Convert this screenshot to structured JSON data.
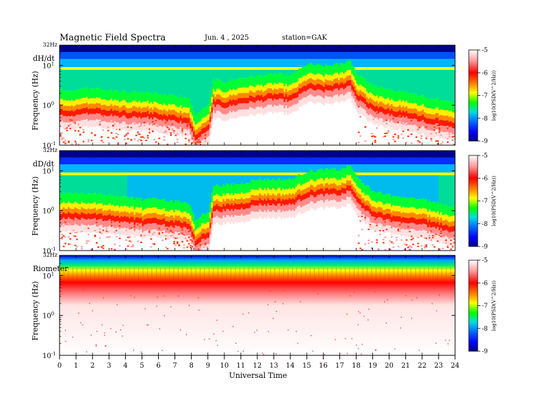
{
  "header": {
    "title": "Magnetic  Field  Spectra",
    "date": "Jun. 4  , 2025",
    "station": "station=GAK"
  },
  "colors": {
    "scale": [
      "#ffffff",
      "#ff9a9a",
      "#ff0000",
      "#ff8c00",
      "#ffff00",
      "#00ff00",
      "#00dddd",
      "#0070ff",
      "#0000ff",
      "#000080"
    ]
  },
  "chart_data": [
    {
      "type": "heatmap",
      "panel_label": "dH/dt",
      "ylabel": "Frequency  (Hz)",
      "xlabel": "",
      "y_scale": "log",
      "y_top_label": "32Hz",
      "y_ticks": [
        {
          "value": 10,
          "base": "10",
          "exp": "1"
        },
        {
          "value": 1,
          "base": "10",
          "exp": "0"
        },
        {
          "value": 0.1,
          "base": "10",
          "exp": "-1"
        }
      ],
      "ylim": [
        0.1,
        32
      ],
      "xlim": [
        0,
        24
      ],
      "x_ticks": [
        "0",
        "1",
        "2",
        "3",
        "4",
        "5",
        "6",
        "7",
        "8",
        "9",
        "10",
        "11",
        "12",
        "13",
        "14",
        "15",
        "16",
        "17",
        "18",
        "19",
        "20",
        "21",
        "22",
        "23",
        "24"
      ],
      "colorbar": {
        "label": "log10(PSD(V^2/Hz))",
        "ticks": [
          "-5",
          "-6",
          "-7",
          "-8",
          "-9"
        ],
        "range": [
          -9,
          -5
        ]
      },
      "ridge_log10_freq": [
        [
          0,
          -0.2
        ],
        [
          1,
          -0.2
        ],
        [
          2,
          -0.15
        ],
        [
          3,
          -0.2
        ],
        [
          4,
          -0.25
        ],
        [
          5,
          -0.25
        ],
        [
          6,
          -0.3
        ],
        [
          7,
          -0.35
        ],
        [
          7.8,
          -0.4
        ],
        [
          8.2,
          -0.8
        ],
        [
          9,
          -0.6
        ],
        [
          9.3,
          0.05
        ],
        [
          10,
          0.0
        ],
        [
          11,
          0.1
        ],
        [
          12,
          0.15
        ],
        [
          13,
          0.2
        ],
        [
          14,
          0.15
        ],
        [
          15,
          0.45
        ],
        [
          16,
          0.4
        ],
        [
          17,
          0.45
        ],
        [
          17.6,
          0.55
        ],
        [
          18,
          0.2
        ],
        [
          19,
          -0.1
        ],
        [
          20,
          -0.2
        ],
        [
          21,
          -0.25
        ],
        [
          22,
          -0.35
        ],
        [
          23,
          -0.45
        ],
        [
          24,
          -0.55
        ]
      ]
    },
    {
      "type": "heatmap",
      "panel_label": "dD/dt",
      "ylabel": "Frequency  (Hz)",
      "xlabel": "",
      "y_scale": "log",
      "y_top_label": "32Hz",
      "y_ticks": [
        {
          "value": 10,
          "base": "10",
          "exp": "1"
        },
        {
          "value": 1,
          "base": "10",
          "exp": "0"
        },
        {
          "value": 0.1,
          "base": "10",
          "exp": "-1"
        }
      ],
      "ylim": [
        0.1,
        32
      ],
      "xlim": [
        0,
        24
      ],
      "x_ticks": [
        "0",
        "1",
        "2",
        "3",
        "4",
        "5",
        "6",
        "7",
        "8",
        "9",
        "10",
        "11",
        "12",
        "13",
        "14",
        "15",
        "16",
        "17",
        "18",
        "19",
        "20",
        "21",
        "22",
        "23",
        "24"
      ],
      "colorbar": {
        "label": "log10(PSD(V^2/Hz))",
        "ticks": [
          "-5",
          "-6",
          "-7",
          "-8",
          "-9"
        ],
        "range": [
          -9,
          -5
        ]
      },
      "ridge_log10_freq": [
        [
          0,
          -0.15
        ],
        [
          1,
          -0.15
        ],
        [
          2,
          -0.15
        ],
        [
          3,
          -0.2
        ],
        [
          4,
          -0.25
        ],
        [
          5,
          -0.3
        ],
        [
          6,
          -0.3
        ],
        [
          7,
          -0.35
        ],
        [
          7.8,
          -0.4
        ],
        [
          8.2,
          -0.8
        ],
        [
          9,
          -0.6
        ],
        [
          9.3,
          0.05
        ],
        [
          10,
          0.05
        ],
        [
          11,
          0.1
        ],
        [
          12,
          0.2
        ],
        [
          13,
          0.2
        ],
        [
          14,
          0.2
        ],
        [
          15,
          0.4
        ],
        [
          16,
          0.45
        ],
        [
          17,
          0.45
        ],
        [
          17.6,
          0.55
        ],
        [
          18,
          0.25
        ],
        [
          19,
          -0.1
        ],
        [
          20,
          -0.2
        ],
        [
          21,
          -0.25
        ],
        [
          22,
          -0.3
        ],
        [
          23,
          -0.4
        ],
        [
          24,
          -0.5
        ]
      ]
    },
    {
      "type": "heatmap",
      "panel_label": "Riometer",
      "ylabel": "Frequency  (Hz)",
      "xlabel": "Universal  Time",
      "y_scale": "log",
      "y_top_label": "32Hz",
      "y_ticks": [
        {
          "value": 10,
          "base": "10",
          "exp": "1"
        },
        {
          "value": 1,
          "base": "10",
          "exp": "0"
        },
        {
          "value": 0.1,
          "base": "10",
          "exp": "-1"
        }
      ],
      "ylim": [
        0.1,
        32
      ],
      "xlim": [
        0,
        24
      ],
      "x_ticks": [
        "0",
        "1",
        "2",
        "3",
        "4",
        "5",
        "6",
        "7",
        "8",
        "9",
        "10",
        "11",
        "12",
        "13",
        "14",
        "15",
        "16",
        "17",
        "18",
        "19",
        "20",
        "21",
        "22",
        "23",
        "24"
      ],
      "colorbar": {
        "label": "log10(PSD(V^2/Hz))",
        "ticks": [
          "-5",
          "-6",
          "-7",
          "-8",
          "-9"
        ],
        "range": [
          -9,
          -5
        ]
      },
      "ridge_log10_freq": [
        [
          0,
          0.9
        ],
        [
          24,
          0.9
        ]
      ]
    }
  ]
}
